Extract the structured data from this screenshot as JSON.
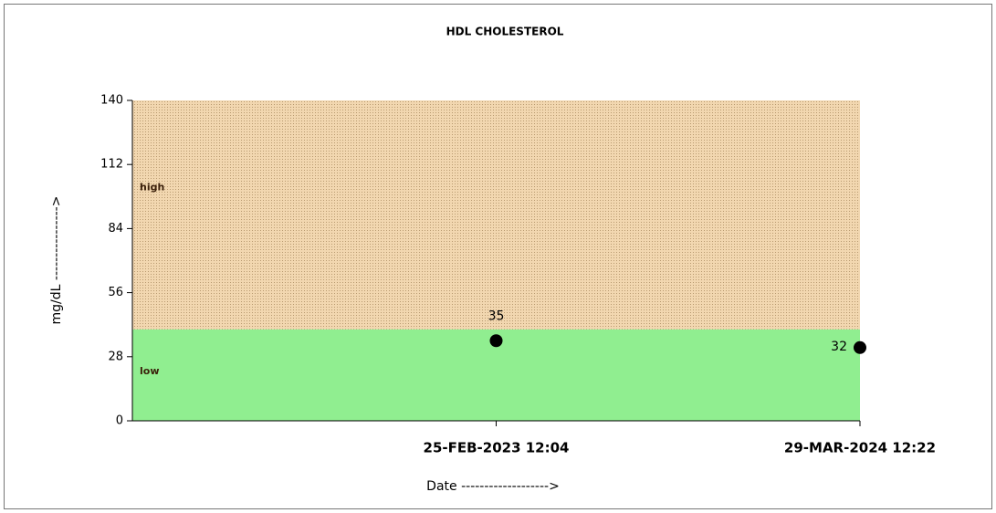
{
  "chart_data": {
    "type": "scatter",
    "title": "HDL CHOLESTEROL",
    "x_label": "Date ------------------->",
    "y_label": "mg/dL ---------------->",
    "categories": [
      "25-FEB-2023 12:04",
      "29-MAR-2024 12:22"
    ],
    "values": [
      35,
      32
    ],
    "value_labels": [
      "35",
      "32"
    ],
    "color": "#000000",
    "ylim": [
      0,
      140
    ],
    "yticks": [
      0,
      28,
      56,
      84,
      112,
      140
    ],
    "bands": [
      {
        "label": "low",
        "from": 0,
        "to": 40,
        "color": "#90ee90"
      },
      {
        "label": "high",
        "from": 40,
        "to": 140,
        "color": "#f2d7b0"
      }
    ]
  }
}
